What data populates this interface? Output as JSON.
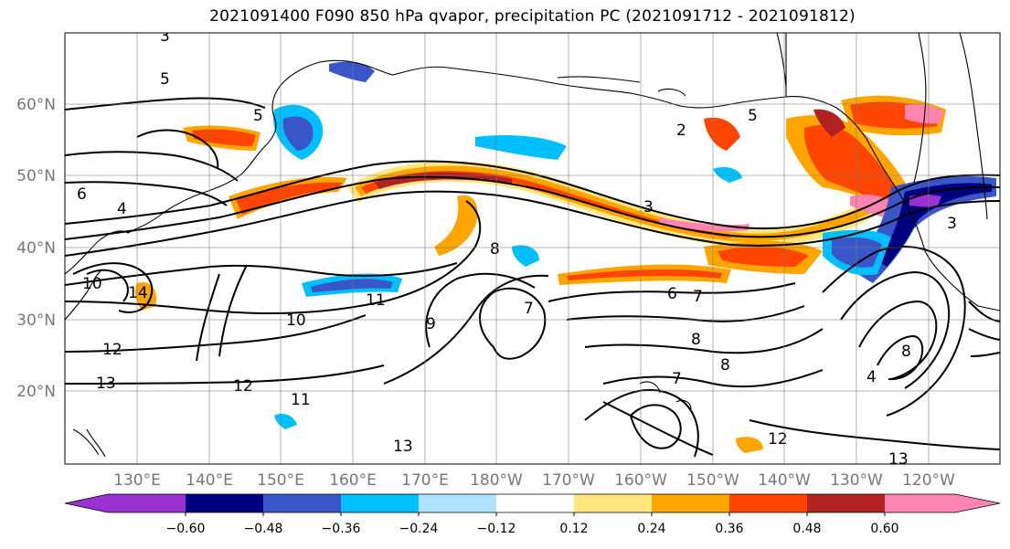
{
  "title": "2021091400 F090 850 hPa qvapor, precipitation PC (2021091712 - 2021091812)",
  "map": {
    "lat_labels": [
      "60°N",
      "50°N",
      "40°N",
      "30°N",
      "20°N"
    ],
    "lon_labels": [
      "130°E",
      "140°E",
      "150°E",
      "160°E",
      "170°E",
      "180°W",
      "170°W",
      "160°W",
      "150°W",
      "140°W",
      "130°W",
      "120°W"
    ],
    "contour_labels": [
      "5",
      "5",
      "3",
      "2",
      "3",
      "3",
      "6",
      "6",
      "5",
      "7",
      "8",
      "7",
      "8",
      "9",
      "8",
      "10",
      "11",
      "10",
      "12",
      "13",
      "12",
      "11",
      "13",
      "13",
      "12",
      "14",
      "4",
      "4",
      "8",
      "7"
    ]
  },
  "colorbar": {
    "ticks": [
      "−0.60",
      "−0.48",
      "−0.36",
      "−0.24",
      "−0.12",
      "0.12",
      "0.24",
      "0.36",
      "0.48",
      "0.60"
    ],
    "colors": [
      "#9b30d0",
      "#00007f",
      "#3955c8",
      "#00bfff",
      "#b0e2ff",
      "#ffffff",
      "#ffe680",
      "#ffa500",
      "#ff4500",
      "#b22222",
      "#ff85b0"
    ]
  }
}
